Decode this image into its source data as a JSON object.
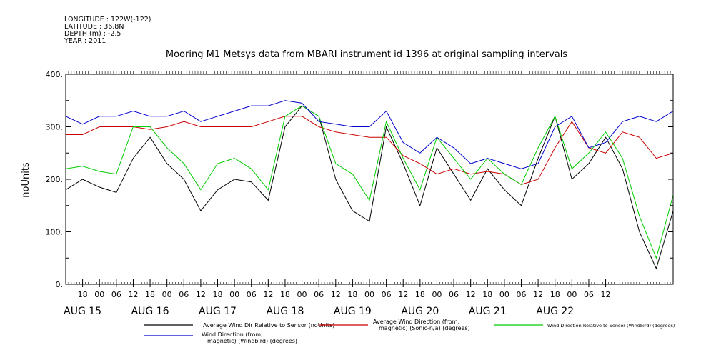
{
  "chart_data": {
    "type": "line",
    "metadata_lines": [
      "LONGITUDE : 122W(-122)",
      "LATITUDE : 36.8N",
      "DEPTH (m) : -2.5",
      "YEAR : 2011"
    ],
    "title": "Mooring M1 Metsys data from MBARI instrument id 1396 at original sampling intervals",
    "ylabel": "noUnits",
    "ylim": [
      0,
      400
    ],
    "yticks": [
      0,
      100,
      200,
      300,
      400
    ],
    "ytick_labels": [
      "0.",
      "100.",
      "200.",
      "300.",
      "400."
    ],
    "xlim_hours": [
      -6,
      210
    ],
    "xtick_labels": [
      "18",
      "00",
      "06",
      "12",
      "18",
      "00",
      "06",
      "12",
      "18",
      "00",
      "06",
      "12",
      "18",
      "00",
      "06",
      "12",
      "18",
      "00",
      "06",
      "12",
      "18",
      "00",
      "06",
      "12",
      "18",
      "00",
      "06",
      "12",
      "18",
      "00",
      "06",
      "12"
    ],
    "day_labels": [
      "AUG 15",
      "AUG 16",
      "AUG 17",
      "AUG 18",
      "AUG 19",
      "AUG 20",
      "AUG 21",
      "AUG 22"
    ],
    "legend": [
      "Average Wind Dir Relative to Sensor (noUnits)",
      "Average Wind Direction (from, magnetic) (Sonic-n/a) (degrees)",
      "Wind Direction Relative to Sensor (Windbird) (degrees)",
      "Wind Direction (from, magnetic) (Windbird) (degrees)"
    ],
    "series": [
      {
        "name": "Average Wind Dir Relative to Sensor (noUnits)",
        "color": "#000000",
        "x": [
          -6,
          0,
          6,
          12,
          18,
          24,
          30,
          36,
          42,
          48,
          54,
          60,
          66,
          72,
          78,
          84,
          90,
          96,
          102,
          108,
          114,
          120,
          126,
          132,
          138,
          144,
          150,
          156,
          162,
          168,
          174,
          180,
          186,
          192,
          198,
          204,
          210
        ],
        "values": [
          180,
          200,
          185,
          175,
          240,
          280,
          230,
          200,
          140,
          180,
          200,
          195,
          160,
          300,
          340,
          320,
          200,
          140,
          120,
          300,
          230,
          150,
          260,
          210,
          160,
          220,
          180,
          150,
          240,
          320,
          200,
          230,
          280,
          220,
          100,
          30,
          140
        ]
      },
      {
        "name": "Average Wind Direction (from, magnetic) (Sonic-n/a) (degrees)",
        "color": "#cc0000",
        "x": [
          -6,
          0,
          6,
          12,
          18,
          24,
          30,
          36,
          42,
          48,
          54,
          60,
          66,
          72,
          78,
          84,
          90,
          96,
          102,
          108,
          114,
          120,
          126,
          132,
          138,
          144,
          150,
          156,
          162,
          168,
          174,
          180,
          186,
          192,
          198,
          204,
          210
        ],
        "values": [
          285,
          285,
          300,
          300,
          300,
          295,
          300,
          310,
          300,
          300,
          300,
          300,
          310,
          320,
          320,
          300,
          290,
          285,
          280,
          280,
          245,
          230,
          210,
          220,
          210,
          215,
          210,
          190,
          200,
          260,
          310,
          260,
          250,
          290,
          280,
          240,
          250
        ]
      },
      {
        "name": "Wind Direction Relative to Sensor (Windbird) (degrees)",
        "color": "#00cc00",
        "x": [
          -6,
          0,
          6,
          12,
          18,
          24,
          30,
          36,
          42,
          48,
          54,
          60,
          66,
          72,
          78,
          84,
          90,
          96,
          102,
          108,
          114,
          120,
          126,
          132,
          138,
          144,
          150,
          156,
          162,
          168,
          174,
          180,
          186,
          192,
          198,
          204,
          210
        ],
        "values": [
          220,
          225,
          215,
          210,
          300,
          300,
          260,
          230,
          180,
          230,
          240,
          220,
          180,
          320,
          340,
          320,
          230,
          210,
          160,
          310,
          240,
          180,
          280,
          240,
          200,
          240,
          210,
          190,
          260,
          320,
          220,
          250,
          290,
          240,
          130,
          50,
          170
        ]
      },
      {
        "name": "Wind Direction (from, magnetic) (Windbird) (degrees)",
        "color": "#0000cc",
        "x": [
          -6,
          0,
          6,
          12,
          18,
          24,
          30,
          36,
          42,
          48,
          54,
          60,
          66,
          72,
          78,
          84,
          90,
          96,
          102,
          108,
          114,
          120,
          126,
          132,
          138,
          144,
          150,
          156,
          162,
          168,
          174,
          180,
          186,
          192,
          198,
          204,
          210
        ],
        "values": [
          320,
          305,
          320,
          320,
          330,
          320,
          320,
          330,
          310,
          320,
          330,
          340,
          340,
          350,
          345,
          310,
          305,
          300,
          300,
          330,
          270,
          250,
          280,
          260,
          230,
          240,
          230,
          220,
          230,
          300,
          320,
          260,
          270,
          310,
          320,
          310,
          330
        ]
      }
    ]
  }
}
